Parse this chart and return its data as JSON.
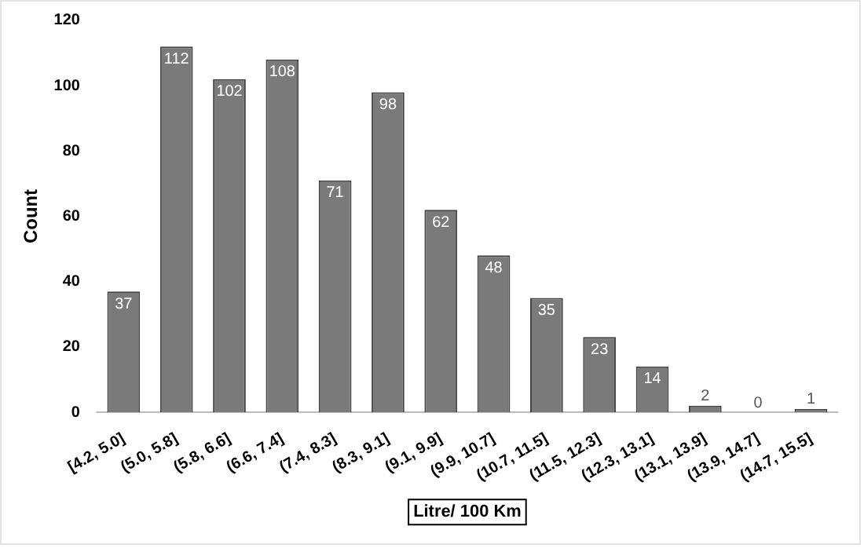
{
  "chart_data": {
    "type": "bar",
    "xlabel": "Litre/ 100 Km",
    "ylabel": "Count",
    "categories": [
      "[4.2, 5.0]",
      "(5.0, 5.8]",
      "(5.8, 6.6]",
      "(6.6, 7.4]",
      "(7.4, 8.3]",
      "(8.3, 9.1]",
      "(9.1, 9.9]",
      "(9.9, 10.7]",
      "(10.7, 11.5]",
      "(11.5, 12.3]",
      "(12.3, 13.1]",
      "(13.1, 13.9]",
      "(13.9, 14.7]",
      "(14.7, 15.5]"
    ],
    "values": [
      37,
      112,
      102,
      108,
      71,
      98,
      62,
      48,
      35,
      23,
      14,
      2,
      0,
      1
    ],
    "color": "#7a7a7a",
    "ylim": [
      0,
      120
    ],
    "yticks": [
      0,
      20,
      40,
      60,
      80,
      100,
      120
    ],
    "grid": false,
    "legend": false,
    "data_labels": true
  }
}
